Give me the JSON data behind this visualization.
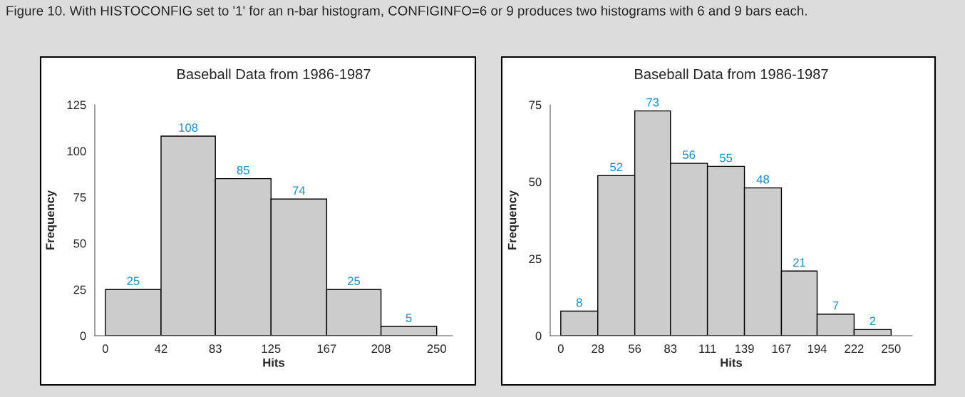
{
  "chart_data": [
    {
      "type": "histogram",
      "title": "Baseball Data from 1986-1987",
      "xlabel": "Hits",
      "ylabel": "Frequency",
      "annotations": [
        "Figure 10. With HISTOCONFIG set to '1' for an n-bar histogram, CONFIGINFO=6 or 9 produces two histograms with 6 and 9 bars each."
      ],
      "bins": [
        0,
        42,
        83,
        125,
        167,
        208,
        250
      ],
      "values": [
        25,
        108,
        85,
        74,
        25,
        5
      ],
      "color": "#cccccc",
      "xlim": [
        -8,
        262
      ],
      "xticks": [
        0,
        42,
        83,
        125,
        167,
        208,
        250
      ],
      "ylim": [
        0,
        125
      ],
      "yticks": [
        0,
        25,
        50,
        75,
        100,
        125
      ],
      "grid": false,
      "data_labels": true
    },
    {
      "type": "histogram",
      "title": "Baseball Data from 1986-1987",
      "xlabel": "Hits",
      "ylabel": "Frequency",
      "bins": [
        0,
        28,
        56,
        83,
        111,
        139,
        167,
        194,
        222,
        250
      ],
      "values": [
        8,
        52,
        73,
        56,
        55,
        48,
        21,
        7,
        2
      ],
      "color": "#cccccc",
      "xlim": [
        -8,
        266
      ],
      "xticks": [
        0,
        28,
        56,
        83,
        111,
        139,
        167,
        194,
        222,
        250
      ],
      "ylim": [
        0,
        75
      ],
      "yticks": [
        0,
        25,
        50,
        75
      ],
      "grid": false,
      "data_labels": true
    }
  ]
}
